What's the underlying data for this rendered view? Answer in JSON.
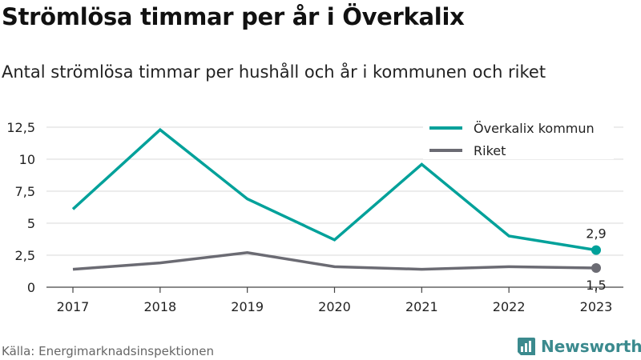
{
  "header": {
    "title": "Strömlösa timmar per år i Överkalix",
    "subtitle": "Antal strömlösa timmar per hushåll och år i kommunen och riket"
  },
  "footer": {
    "source": "Källa: Energimarknadsinspektionen",
    "brand": "Newsworthy",
    "brand_icon": "bar-chart-logo-icon"
  },
  "colors": {
    "overkalix": "#00a19a",
    "riket": "#6b6b73",
    "grid": "#d9d9d9",
    "brand": "#3b8a8e"
  },
  "chart_data": {
    "type": "line",
    "x": [
      "2017",
      "2018",
      "2019",
      "2020",
      "2021",
      "2022",
      "2023"
    ],
    "ylim": [
      0,
      12.5
    ],
    "y_ticks": [
      "0",
      "2,5",
      "5",
      "7,5",
      "10",
      "12,5"
    ],
    "y_tick_values": [
      0,
      2.5,
      5,
      7.5,
      10,
      12.5
    ],
    "grid": true,
    "legend_position": "top-right",
    "series": [
      {
        "name": "Överkalix kommun",
        "values": [
          6.1,
          12.3,
          6.9,
          3.7,
          9.6,
          4.0,
          2.9
        ],
        "end_label": "2,9"
      },
      {
        "name": "Riket",
        "values": [
          1.4,
          1.9,
          2.7,
          1.6,
          1.4,
          1.6,
          1.5
        ],
        "end_label": "1,5"
      }
    ]
  }
}
